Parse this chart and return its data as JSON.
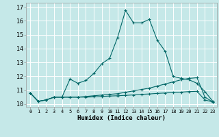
{
  "title": "",
  "xlabel": "Humidex (Indice chaleur)",
  "background_color": "#c5e8e8",
  "grid_color": "#ffffff",
  "line_color": "#006666",
  "xlim": [
    -0.5,
    23.5
  ],
  "ylim": [
    9.8,
    17.3
  ],
  "x_ticks": [
    0,
    1,
    2,
    3,
    4,
    5,
    6,
    7,
    8,
    9,
    10,
    11,
    12,
    13,
    14,
    15,
    16,
    17,
    18,
    19,
    20,
    21,
    22,
    23
  ],
  "y_ticks": [
    10,
    11,
    12,
    13,
    14,
    15,
    16,
    17
  ],
  "line1_x": [
    0,
    1,
    2,
    3,
    4,
    5,
    6,
    7,
    8,
    9,
    10,
    11,
    12,
    13,
    14,
    15,
    16,
    17,
    18,
    19,
    20,
    21,
    22,
    23
  ],
  "line1_y": [
    10.8,
    10.2,
    10.3,
    10.5,
    10.5,
    11.8,
    11.5,
    11.7,
    12.2,
    12.9,
    13.3,
    14.8,
    16.75,
    15.85,
    15.85,
    16.1,
    14.6,
    13.8,
    12.0,
    11.85,
    11.75,
    11.5,
    10.9,
    10.2
  ],
  "line2_x": [
    0,
    1,
    2,
    3,
    4,
    5,
    6,
    7,
    8,
    9,
    10,
    11,
    12,
    13,
    14,
    15,
    16,
    17,
    18,
    19,
    20,
    21,
    22,
    23
  ],
  "line2_y": [
    10.8,
    10.2,
    10.3,
    10.5,
    10.5,
    10.5,
    10.5,
    10.55,
    10.6,
    10.65,
    10.7,
    10.75,
    10.85,
    10.95,
    11.05,
    11.15,
    11.3,
    11.45,
    11.6,
    11.75,
    11.85,
    11.9,
    10.5,
    10.15
  ],
  "line3_x": [
    0,
    1,
    2,
    3,
    4,
    5,
    6,
    7,
    8,
    9,
    10,
    11,
    12,
    13,
    14,
    15,
    16,
    17,
    18,
    19,
    20,
    21,
    22,
    23
  ],
  "line3_y": [
    10.8,
    10.2,
    10.3,
    10.5,
    10.5,
    10.5,
    10.5,
    10.5,
    10.52,
    10.55,
    10.58,
    10.6,
    10.63,
    10.66,
    10.7,
    10.73,
    10.77,
    10.8,
    10.83,
    10.86,
    10.9,
    10.92,
    10.3,
    10.15
  ]
}
